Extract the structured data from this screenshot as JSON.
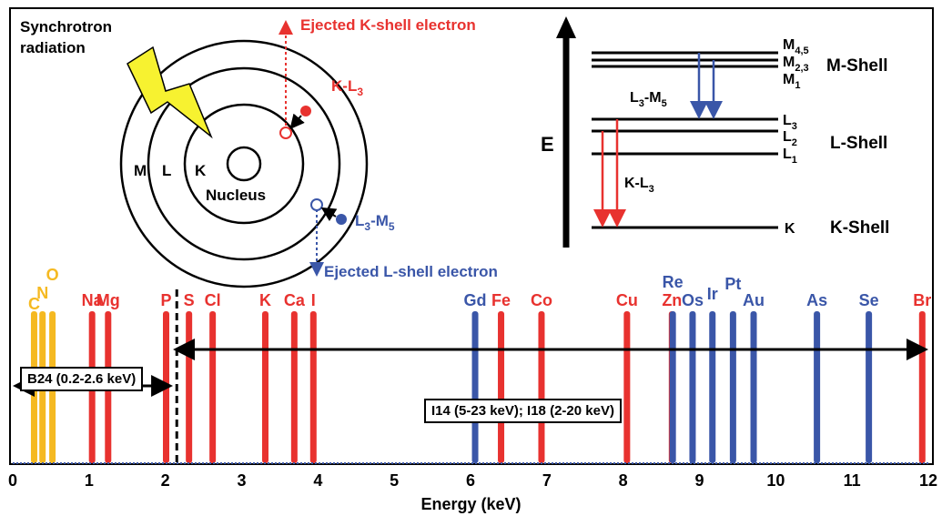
{
  "diagram": {
    "synchrotron_label_1": "Synchrotron",
    "synchrotron_label_2": "radiation",
    "shell_m": "M",
    "shell_l": "L",
    "shell_k": "K",
    "nucleus": "Nucleus",
    "ejected_k": "Ejected K-shell electron",
    "ejected_l": "Ejected L-shell electron",
    "kl3_label": "K-L",
    "kl3_sub": "3",
    "l3m5_label_main": "L",
    "l3m5_sub1": "3",
    "l3m5_dash": "-M",
    "l3m5_sub2": "5"
  },
  "energy_levels": {
    "axis_label": "E",
    "m45": "M",
    "m45_sub": "4,5",
    "m23": "M",
    "m23_sub": "2,3",
    "m1": "M",
    "m1_sub": "1",
    "m_shell": "M-Shell",
    "l3": "L",
    "l3_sub": "3",
    "l2": "L",
    "l2_sub": "2",
    "l1": "L",
    "l1_sub": "1",
    "l_shell": "L-Shell",
    "k": "K",
    "k_shell": "K-Shell",
    "trans_l3m5": "L",
    "trans_l3m5_sub1": "3",
    "trans_l3m5_mid": "-M",
    "trans_l3m5_sub2": "5",
    "trans_kl3": "K-L",
    "trans_kl3_sub": "3"
  },
  "beamlines": {
    "b24": "B24 (0.2-2.6 keV)",
    "i14": "I14 (5-23 keV); I18 (2-20 keV)"
  },
  "colors": {
    "light": "#f5b921",
    "k_line": "#e8322f",
    "l_line": "#3a56a8",
    "black": "#000000"
  },
  "chart_data": {
    "type": "bar",
    "xlabel": "Energy (keV)",
    "xlim": [
      0,
      12
    ],
    "xticks": [
      "0",
      "1",
      "2",
      "3",
      "4",
      "5",
      "6",
      "7",
      "8",
      "9",
      "10",
      "11",
      "12"
    ],
    "elements": [
      {
        "symbol": "C",
        "energy": 0.28,
        "group": "light"
      },
      {
        "symbol": "N",
        "energy": 0.39,
        "group": "light"
      },
      {
        "symbol": "O",
        "energy": 0.52,
        "group": "light"
      },
      {
        "symbol": "Na",
        "energy": 1.04,
        "group": "k"
      },
      {
        "symbol": "Mg",
        "energy": 1.25,
        "group": "k"
      },
      {
        "symbol": "P",
        "energy": 2.01,
        "group": "k"
      },
      {
        "symbol": "S",
        "energy": 2.31,
        "group": "k"
      },
      {
        "symbol": "Cl",
        "energy": 2.62,
        "group": "k"
      },
      {
        "symbol": "K",
        "energy": 3.31,
        "group": "k"
      },
      {
        "symbol": "Ca",
        "energy": 3.69,
        "group": "k"
      },
      {
        "symbol": "I",
        "energy": 3.94,
        "group": "k"
      },
      {
        "symbol": "Gd",
        "energy": 6.06,
        "group": "l"
      },
      {
        "symbol": "Fe",
        "energy": 6.4,
        "group": "k"
      },
      {
        "symbol": "Co",
        "energy": 6.93,
        "group": "k"
      },
      {
        "symbol": "Cu",
        "energy": 8.05,
        "group": "k"
      },
      {
        "symbol": "Zn",
        "energy": 8.64,
        "group": "k"
      },
      {
        "symbol": "Re",
        "energy": 8.65,
        "group": "l"
      },
      {
        "symbol": "Os",
        "energy": 8.91,
        "group": "l"
      },
      {
        "symbol": "Ir",
        "energy": 9.17,
        "group": "l"
      },
      {
        "symbol": "Pt",
        "energy": 9.44,
        "group": "l"
      },
      {
        "symbol": "Au",
        "energy": 9.71,
        "group": "l"
      },
      {
        "symbol": "As",
        "energy": 10.54,
        "group": "l"
      },
      {
        "symbol": "Se",
        "energy": 11.22,
        "group": "l"
      },
      {
        "symbol": "Br",
        "energy": 11.92,
        "group": "k"
      }
    ],
    "b24_range": [
      0.0,
      2.1
    ],
    "i14_range": [
      2.1,
      12.0
    ],
    "divider_energy": 2.15
  }
}
